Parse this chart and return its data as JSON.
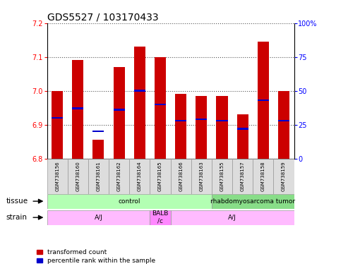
{
  "title": "GDS5527 / 103170433",
  "samples": [
    "GSM738156",
    "GSM738160",
    "GSM738161",
    "GSM738162",
    "GSM738164",
    "GSM738165",
    "GSM738166",
    "GSM738163",
    "GSM738155",
    "GSM738157",
    "GSM738158",
    "GSM738159"
  ],
  "bar_tops": [
    7.0,
    7.09,
    6.855,
    7.07,
    7.13,
    7.1,
    6.99,
    6.985,
    6.985,
    6.93,
    7.145,
    7.0
  ],
  "percentile_ranks": [
    30,
    37,
    20,
    36,
    50,
    40,
    28,
    29,
    28,
    22,
    43,
    28
  ],
  "bar_base": 6.8,
  "ylim_left": [
    6.8,
    7.2
  ],
  "ylim_right": [
    0,
    100
  ],
  "yticks_left": [
    6.8,
    6.9,
    7.0,
    7.1,
    7.2
  ],
  "yticks_right": [
    0,
    25,
    50,
    75,
    100
  ],
  "bar_color": "#cc0000",
  "percentile_color": "#0000cc",
  "bar_width": 0.55,
  "tissue_groups": [
    {
      "label": "control",
      "start": 0,
      "end": 8,
      "color": "#b3ffb3"
    },
    {
      "label": "rhabdomyosarcoma tumor",
      "start": 8,
      "end": 12,
      "color": "#88dd88"
    }
  ],
  "strain_groups": [
    {
      "label": "A/J",
      "start": 0,
      "end": 5,
      "color": "#ffbbff"
    },
    {
      "label": "BALB\n/c",
      "start": 5,
      "end": 6,
      "color": "#ff88ff"
    },
    {
      "label": "A/J",
      "start": 6,
      "end": 12,
      "color": "#ffbbff"
    }
  ],
  "legend_items": [
    {
      "label": "transformed count",
      "color": "#cc0000"
    },
    {
      "label": "percentile rank within the sample",
      "color": "#0000cc"
    }
  ],
  "title_fontsize": 10,
  "tick_fontsize": 7,
  "label_fontsize": 8,
  "background_color": "#ffffff"
}
